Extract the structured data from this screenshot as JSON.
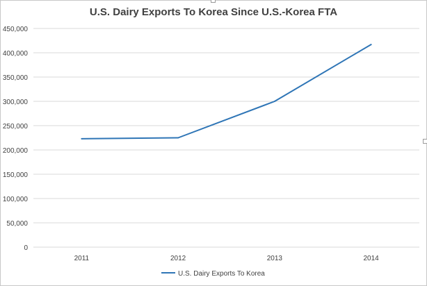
{
  "chart_data": {
    "type": "line",
    "title": "U.S. Dairy Exports To Korea Since U.S.-Korea FTA",
    "xlabel": "",
    "ylabel": "",
    "categories": [
      "2011",
      "2012",
      "2013",
      "2014"
    ],
    "series": [
      {
        "name": "U.S. Dairy Exports To Korea",
        "values": [
          223000,
          225000,
          300000,
          417000
        ],
        "color": "#2e75b6"
      }
    ],
    "ylim": [
      0,
      450000
    ],
    "yticks": [
      0,
      50000,
      100000,
      150000,
      200000,
      250000,
      300000,
      350000,
      400000,
      450000
    ],
    "ytick_labels": [
      "0",
      "50,000",
      "100,000",
      "150,000",
      "200,000",
      "250,000",
      "300,000",
      "350,000",
      "400,000",
      "450,000"
    ],
    "grid": true,
    "legend": "bottom"
  }
}
